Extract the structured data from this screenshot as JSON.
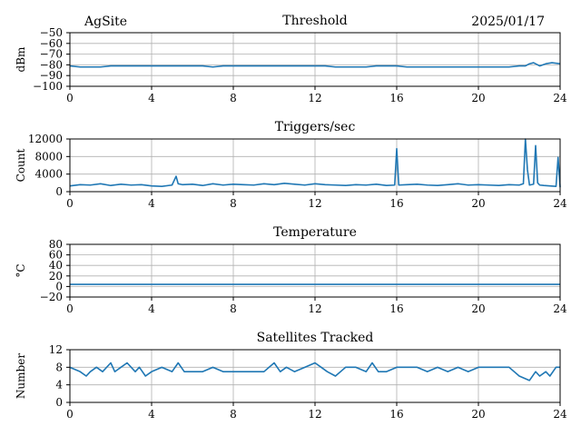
{
  "header": {
    "site": "AgSite",
    "date": "2025/01/17"
  },
  "colors": {
    "line": "#1f77b4",
    "grid": "#b0b0b0",
    "axes": "#000000"
  },
  "chart_data": [
    {
      "type": "line",
      "title": "Threshold",
      "xlabel": "",
      "ylabel": "dBm",
      "xlim": [
        0,
        24
      ],
      "ylim": [
        -100,
        -50
      ],
      "xticks": [
        0,
        4,
        8,
        12,
        16,
        20,
        24
      ],
      "yticks": [
        -100,
        -90,
        -80,
        -70,
        -60,
        -50
      ],
      "ytick_labels": [
        "−100",
        "−90",
        "−80",
        "−70",
        "−60",
        "−50"
      ],
      "grid": true,
      "x": [
        0,
        0.5,
        1,
        1.5,
        2,
        2.5,
        3,
        3.5,
        4,
        4.5,
        5,
        5.5,
        6,
        6.5,
        7,
        7.5,
        8,
        8.5,
        9,
        9.5,
        10,
        10.5,
        11,
        11.5,
        12,
        12.5,
        13,
        13.5,
        14,
        14.5,
        15,
        15.5,
        16,
        16.5,
        17,
        17.5,
        18,
        18.5,
        19,
        19.5,
        20,
        20.5,
        21,
        21.5,
        22,
        22.3,
        22.5,
        22.7,
        23,
        23.3,
        23.6,
        24
      ],
      "values": [
        -81,
        -82,
        -82,
        -82,
        -81,
        -81,
        -81,
        -81,
        -81,
        -81,
        -81,
        -81,
        -81,
        -81,
        -82,
        -81,
        -81,
        -81,
        -81,
        -81,
        -81,
        -81,
        -81,
        -81,
        -81,
        -81,
        -82,
        -82,
        -82,
        -82,
        -81,
        -81,
        -81,
        -82,
        -82,
        -82,
        -82,
        -82,
        -82,
        -82,
        -82,
        -82,
        -82,
        -82,
        -81,
        -81,
        -79,
        -78,
        -81,
        -79,
        -78,
        -79
      ]
    },
    {
      "type": "line",
      "title": "Triggers/sec",
      "xlabel": "",
      "ylabel": "Count",
      "xlim": [
        0,
        24
      ],
      "ylim": [
        0,
        12000
      ],
      "xticks": [
        0,
        4,
        8,
        12,
        16,
        20,
        24
      ],
      "yticks": [
        0,
        4000,
        8000,
        12000
      ],
      "ytick_labels": [
        "0",
        "4000",
        "8000",
        "12000"
      ],
      "grid": true,
      "x": [
        0,
        0.5,
        1,
        1.5,
        2,
        2.5,
        3,
        3.5,
        4,
        4.5,
        5,
        5.2,
        5.3,
        5.5,
        6,
        6.5,
        7,
        7.5,
        8,
        8.5,
        9,
        9.5,
        10,
        10.5,
        11,
        11.5,
        12,
        12.5,
        13,
        13.5,
        14,
        14.5,
        15,
        15.5,
        15.9,
        16.0,
        16.1,
        16.5,
        17,
        17.5,
        18,
        18.5,
        19,
        19.5,
        20,
        20.5,
        21,
        21.5,
        22,
        22.2,
        22.3,
        22.4,
        22.5,
        22.7,
        22.8,
        22.9,
        23.0,
        23.2,
        23.5,
        23.8,
        23.9,
        24
      ],
      "values": [
        1300,
        1600,
        1500,
        1800,
        1400,
        1700,
        1500,
        1600,
        1300,
        1200,
        1500,
        3500,
        1800,
        1600,
        1700,
        1400,
        1800,
        1500,
        1700,
        1600,
        1500,
        1800,
        1600,
        1900,
        1700,
        1500,
        1800,
        1600,
        1500,
        1400,
        1600,
        1500,
        1700,
        1400,
        1500,
        9800,
        1500,
        1600,
        1700,
        1500,
        1400,
        1600,
        1800,
        1500,
        1600,
        1500,
        1400,
        1600,
        1500,
        1800,
        12000,
        5000,
        1500,
        1700,
        10500,
        2000,
        1500,
        1400,
        1300,
        1200,
        7800,
        1000
      ]
    },
    {
      "type": "line",
      "title": "Temperature",
      "xlabel": "",
      "ylabel": "°C",
      "xlim": [
        0,
        24
      ],
      "ylim": [
        -20,
        80
      ],
      "xticks": [
        0,
        4,
        8,
        12,
        16,
        20,
        24
      ],
      "yticks": [
        -20,
        0,
        20,
        40,
        60,
        80
      ],
      "ytick_labels": [
        "−20",
        "0",
        "20",
        "40",
        "60",
        "80"
      ],
      "grid": true,
      "x": [
        0,
        24
      ],
      "values": [
        4,
        4
      ]
    },
    {
      "type": "line",
      "title": "Satellites Tracked",
      "xlabel": "",
      "ylabel": "Number",
      "xlim": [
        0,
        24
      ],
      "ylim": [
        0,
        12
      ],
      "xticks": [
        0,
        4,
        8,
        12,
        16,
        20,
        24
      ],
      "yticks": [
        0,
        4,
        8,
        12
      ],
      "ytick_labels": [
        "0",
        "4",
        "8",
        "12"
      ],
      "grid": true,
      "x": [
        0,
        0.5,
        0.8,
        1.0,
        1.3,
        1.6,
        2.0,
        2.2,
        2.5,
        2.8,
        3.2,
        3.4,
        3.7,
        4.0,
        4.5,
        5.0,
        5.3,
        5.6,
        6.0,
        6.5,
        7.0,
        7.5,
        8.0,
        8.5,
        9.0,
        9.5,
        10.0,
        10.3,
        10.6,
        11.0,
        11.5,
        12.0,
        12.3,
        12.6,
        13.0,
        13.5,
        14.0,
        14.5,
        14.8,
        15.1,
        15.5,
        16.0,
        16.5,
        17.0,
        17.5,
        18.0,
        18.5,
        19.0,
        19.5,
        20.0,
        20.5,
        21.0,
        21.5,
        22.0,
        22.5,
        22.8,
        23.0,
        23.3,
        23.5,
        23.8,
        24.0
      ],
      "values": [
        8,
        7,
        6,
        7,
        8,
        7,
        9,
        7,
        8,
        9,
        7,
        8,
        6,
        7,
        8,
        7,
        9,
        7,
        7,
        7,
        8,
        7,
        7,
        7,
        7,
        7,
        9,
        7,
        8,
        7,
        8,
        9,
        8,
        7,
        6,
        8,
        8,
        7,
        9,
        7,
        7,
        8,
        8,
        8,
        7,
        8,
        7,
        8,
        7,
        8,
        8,
        8,
        8,
        6,
        5,
        7,
        6,
        7,
        6,
        8,
        8
      ]
    }
  ]
}
